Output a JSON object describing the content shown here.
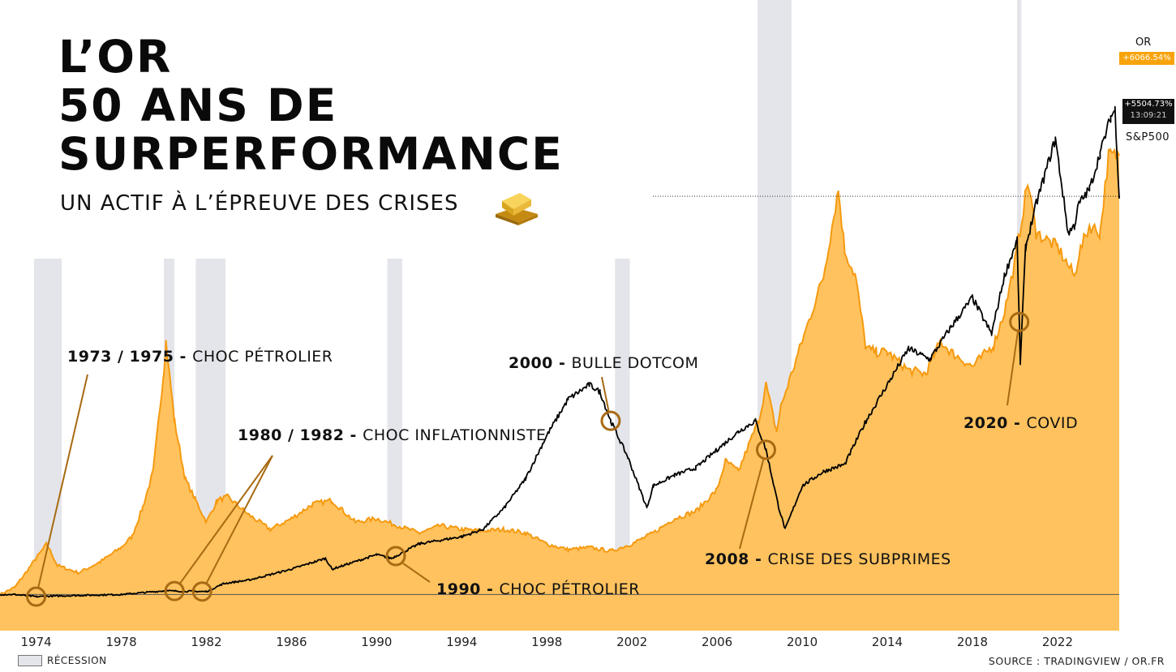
{
  "title": {
    "line1": "L’OR",
    "line2": "50 ANS DE",
    "line3": "SURPERFORMANCE"
  },
  "subtitle": "UN ACTIF À L’ÉPREUVE DES CRISES",
  "icons": {
    "gold": "gold-bars-icon"
  },
  "colors": {
    "gold_fill": "#ffc25e",
    "gold_line": "#f59a10",
    "sp_line": "#000000",
    "recession": "#e4e5ea",
    "annotation": "#a86a12"
  },
  "legend": {
    "recession": "RÉCESSION"
  },
  "source": "SOURCE : TRADINGVIEW / OR.FR",
  "badges": {
    "or_label": "OR",
    "or_value": "+6066.54%",
    "sp_value": "+5504.73%",
    "sp_time": "13:09:21",
    "sp_label": "S&P500"
  },
  "annotations": [
    {
      "year": "1973 / 1975",
      "sep": " - ",
      "text": "CHOC PÉTROLIER"
    },
    {
      "year": "1980 / 1982",
      "sep": " - ",
      "text": "CHOC INFLATIONNISTE"
    },
    {
      "year": "1990",
      "sep": " - ",
      "text": "CHOC PÉTROLIER"
    },
    {
      "year": "2000",
      "sep": " - ",
      "text": "BULLE DOTCOM"
    },
    {
      "year": "2008",
      "sep": " - ",
      "text": "CRISE DES SUBPRIMES"
    },
    {
      "year": "2020",
      "sep": " - ",
      "text": "COVID"
    }
  ],
  "chart_data": {
    "type": "area",
    "x_ticks": [
      "1974",
      "1978",
      "1982",
      "1986",
      "1990",
      "1994",
      "1998",
      "2002",
      "2006",
      "2010",
      "2014",
      "2018",
      "2022"
    ],
    "xlim": [
      1972.3,
      2024.9
    ],
    "ylim": [
      -500,
      7500
    ],
    "grid": false,
    "series": [
      {
        "name": "OR",
        "unit": "%",
        "x": [
          1972.3,
          1973.0,
          1973.5,
          1974.0,
          1974.5,
          1975.0,
          1976.0,
          1977.0,
          1978.0,
          1978.5,
          1979.0,
          1979.5,
          1980.0,
          1980.1,
          1980.5,
          1981.0,
          1981.5,
          1982.0,
          1982.5,
          1983.0,
          1984.0,
          1985.0,
          1986.0,
          1987.0,
          1987.9,
          1989.0,
          1990.0,
          1991.0,
          1992.0,
          1993.0,
          1994.0,
          1995.0,
          1996.0,
          1997.0,
          1998.0,
          1999.0,
          2000.0,
          2001.0,
          2002.0,
          2003.0,
          2004.0,
          2005.0,
          2006.0,
          2006.4,
          2007.0,
          2008.0,
          2008.3,
          2008.8,
          2009.0,
          2010.0,
          2011.0,
          2011.7,
          2012.0,
          2012.5,
          2013.0,
          2013.5,
          2014.0,
          2015.0,
          2015.8,
          2016.5,
          2017.0,
          2018.0,
          2019.0,
          2019.5,
          2020.0,
          2020.6,
          2021.0,
          2022.0,
          2022.8,
          2023.0,
          2023.5,
          2024.0,
          2024.4,
          2024.6,
          2024.9
        ],
        "values": [
          0,
          100,
          300,
          500,
          700,
          400,
          300,
          450,
          650,
          800,
          1200,
          1700,
          3100,
          3500,
          2400,
          1600,
          1300,
          1000,
          1300,
          1350,
          1100,
          900,
          1050,
          1250,
          1300,
          1000,
          1050,
          950,
          850,
          950,
          900,
          880,
          900,
          850,
          700,
          620,
          650,
          600,
          700,
          850,
          1050,
          1150,
          1450,
          1850,
          1700,
          2450,
          2900,
          2250,
          2600,
          3500,
          4400,
          5600,
          4750,
          4400,
          3400,
          3350,
          3350,
          3100,
          3050,
          3500,
          3350,
          3150,
          3450,
          3900,
          4600,
          5700,
          5000,
          4800,
          4400,
          4700,
          5100,
          5000,
          6066.54,
          6066.54,
          6066.54
        ]
      },
      {
        "name": "S&P500",
        "unit": "%",
        "x": [
          1972.3,
          1973.0,
          1974.0,
          1975.0,
          1978.0,
          1980.0,
          1982.0,
          1982.8,
          1984.0,
          1986.0,
          1987.6,
          1987.9,
          1990.0,
          1990.7,
          1992.0,
          1994.0,
          1995.0,
          1996.0,
          1997.0,
          1998.0,
          1999.0,
          2000.0,
          2000.5,
          2001.0,
          2001.8,
          2002.7,
          2003.0,
          2004.0,
          2005.0,
          2006.0,
          2007.0,
          2007.8,
          2008.3,
          2008.9,
          2009.2,
          2010.0,
          2011.0,
          2012.0,
          2013.0,
          2014.0,
          2015.0,
          2016.0,
          2017.0,
          2018.0,
          2018.9,
          2019.5,
          2020.1,
          2020.25,
          2020.5,
          2021.0,
          2021.9,
          2022.5,
          2022.8,
          2023.0,
          2023.5,
          2024.0,
          2024.5,
          2024.7,
          2024.9
        ],
        "values": [
          0,
          0,
          -30,
          -20,
          0,
          50,
          40,
          150,
          200,
          350,
          500,
          350,
          550,
          500,
          700,
          800,
          900,
          1200,
          1600,
          2200,
          2700,
          2900,
          2800,
          2400,
          1900,
          1200,
          1500,
          1650,
          1750,
          2000,
          2250,
          2400,
          2000,
          1200,
          900,
          1500,
          1700,
          1800,
          2400,
          2900,
          3400,
          3250,
          3700,
          4100,
          3600,
          4400,
          4900,
          3200,
          4800,
          5400,
          6300,
          5000,
          5100,
          5400,
          5600,
          6100,
          6600,
          6700,
          5504.73
        ]
      }
    ],
    "recessions": [
      [
        1973.9,
        1975.2
      ],
      [
        1980.0,
        1980.5
      ],
      [
        1981.5,
        1982.9
      ],
      [
        1990.5,
        1991.2
      ],
      [
        2001.2,
        2001.9
      ],
      [
        2007.9,
        2009.5
      ],
      [
        2020.1,
        2020.3
      ]
    ],
    "markers": [
      1974.0,
      1980.5,
      1981.8,
      1990.9,
      2001.0,
      2008.3,
      2020.2
    ],
    "reference_value": 5504.73
  }
}
